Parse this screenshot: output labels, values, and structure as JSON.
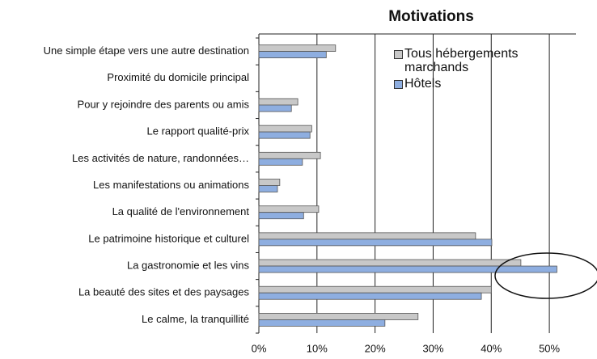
{
  "chart_data": {
    "type": "bar",
    "orientation": "horizontal",
    "title": "Motivations",
    "categories": [
      "Une simple étape vers une autre destination",
      "Proximité du domicile principal",
      "Pour y rejoindre des parents ou amis",
      "Le rapport qualité-prix",
      "Les activités de nature, randonnées…",
      "Les manifestations ou animations",
      "La qualité de l'environnement",
      "Le patrimoine historique et culturel",
      "La gastronomie et les vins",
      "La beauté des sites et des paysages",
      "Le calme, la tranquillité"
    ],
    "series": [
      {
        "name": "Tous hébergements marchands",
        "color": "#c8c8c8",
        "values": [
          13.2,
          0,
          6.7,
          9.1,
          10.6,
          3.6,
          10.3,
          37.3,
          45.1,
          40.0,
          27.4
        ]
      },
      {
        "name": "Hôtels",
        "color": "#8eaee0",
        "values": [
          11.6,
          0,
          5.6,
          8.8,
          7.5,
          3.2,
          7.7,
          40.1,
          51.3,
          38.3,
          21.7
        ]
      }
    ],
    "xlim": [
      0,
      55
    ],
    "xticks": [
      {
        "value": 0,
        "label": "0%"
      },
      {
        "value": 10,
        "label": "10%"
      },
      {
        "value": 20,
        "label": "20%"
      },
      {
        "value": 30,
        "label": "30%"
      },
      {
        "value": 40,
        "label": "40%"
      },
      {
        "value": 50,
        "label": "50%"
      }
    ],
    "grid": true
  }
}
